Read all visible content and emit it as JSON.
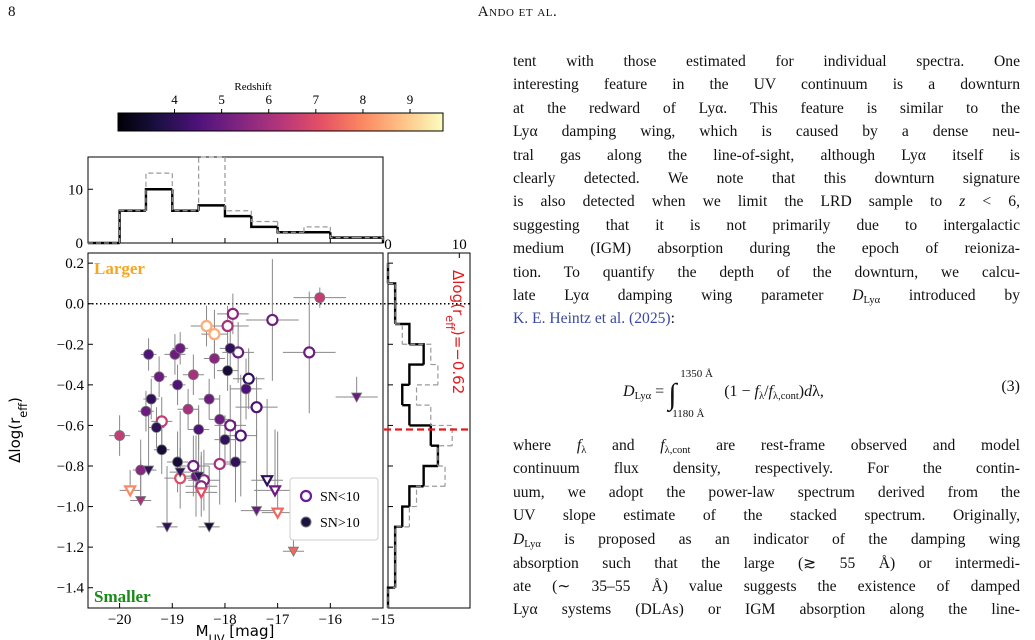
{
  "header": {
    "page": "8",
    "running_title": "Ando et al."
  },
  "figure": {
    "colorbar": {
      "label": "Redshift",
      "clim": [
        2.8,
        9.7
      ],
      "ticks": [
        4,
        5,
        6,
        7,
        8,
        9
      ],
      "colormap": "magma"
    },
    "top_hist": {
      "type": "histogram",
      "bins": [
        -20.6,
        -20,
        -19.5,
        -19,
        -18.5,
        -18,
        -17.5,
        -17,
        -16.5,
        -16,
        -15.5,
        -15
      ],
      "series": [
        {
          "color": "#000000",
          "style": "solid",
          "values": [
            0,
            6,
            10,
            6,
            7,
            5,
            3,
            2,
            2,
            1,
            1
          ]
        },
        {
          "color": "#9a9a9a",
          "style": "dashed",
          "values": [
            0,
            6,
            13,
            6,
            16,
            6,
            4,
            2,
            3,
            1,
            1
          ]
        }
      ],
      "ylim": [
        0,
        16
      ],
      "yticks": [
        0,
        10
      ]
    },
    "right_hist": {
      "type": "histogram",
      "bins": [
        0.2,
        0.1,
        0.0,
        -0.1,
        -0.2,
        -0.3,
        -0.4,
        -0.5,
        -0.6,
        -0.7,
        -0.8,
        -0.9,
        -1.0,
        -1.1,
        -1.2,
        -1.3,
        -1.4,
        -1.5
      ],
      "series": [
        {
          "color": "#000000",
          "style": "solid",
          "values": [
            0,
            1,
            1,
            3,
            5,
            3,
            2,
            3,
            6,
            7,
            5,
            3,
            2,
            1,
            1,
            1,
            0
          ]
        },
        {
          "color": "#9a9a9a",
          "style": "dashed",
          "values": [
            0,
            1,
            1,
            2,
            6,
            7,
            4,
            6,
            9,
            7,
            8,
            4,
            3,
            1,
            1,
            1,
            0
          ]
        }
      ],
      "xlim": [
        0,
        11.5
      ],
      "xticks": [
        0,
        10
      ],
      "median": -0.62,
      "median_color": "#e41a1c",
      "annotation": {
        "main": "Δlog(r",
        "sub": "eff",
        "rest": ")=−0.62"
      }
    },
    "scatter": {
      "type": "scatter",
      "xlabel": {
        "main": "M",
        "sub": "UV",
        "rest": " [mag]"
      },
      "ylabel": {
        "main": "Δlog(r",
        "sub": "eff",
        "rest": ")"
      },
      "xlim": [
        -20.6,
        -15
      ],
      "ylim": [
        -1.5,
        0.25
      ],
      "xticks": [
        {
          "value": -20,
          "label": "−20"
        },
        {
          "value": -19,
          "label": "−19"
        },
        {
          "value": -18,
          "label": "−18"
        },
        {
          "value": -17,
          "label": "−17"
        },
        {
          "value": -16,
          "label": "−16"
        },
        {
          "value": -15,
          "label": "−15"
        }
      ],
      "yticks": [
        0.2,
        {
          "value": 0,
          "label": "0.0"
        },
        {
          "value": -0.2,
          "label": "−0.2"
        },
        {
          "value": -0.4,
          "label": "−0.4"
        },
        {
          "value": -0.6,
          "label": "−0.6"
        },
        {
          "value": -0.8,
          "label": "−0.8"
        },
        {
          "value": -1.0,
          "label": "−1.0"
        },
        {
          "value": -1.2,
          "label": "−1.2"
        },
        {
          "value": -1.4,
          "label": "−1.4"
        }
      ],
      "reference_line": 0,
      "annotations": [
        {
          "text": "Larger",
          "color": "#f5a623"
        },
        {
          "text": "Smaller",
          "color": "#1a8a1a"
        }
      ],
      "legend": "lower right",
      "series": [
        {
          "name": "SN<10",
          "marker": "open",
          "color": "#6a1b9a",
          "x": [
            -19.2,
            -18.85,
            -18.35,
            -18.2,
            -18.1,
            -17.95,
            -17.85,
            -17.75,
            -17.7,
            -17.55,
            -17.4,
            -17.1,
            -16.4,
            -18.4,
            -18.45,
            -17.9,
            -18.6,
            -19.8,
            -17.05,
            -17.2,
            -18.45,
            -17.0
          ],
          "values": [
            -0.58,
            -0.86,
            -0.11,
            -0.15,
            -0.79,
            -0.11,
            -0.05,
            -0.24,
            -0.65,
            -0.37,
            -0.51,
            -0.08,
            -0.24,
            -0.87,
            -0.9,
            -0.6,
            -0.8,
            -0.92,
            -0.92,
            -0.87,
            -0.93,
            -1.03
          ],
          "z": [
            6.5,
            7,
            8.5,
            8.5,
            6,
            6,
            5.5,
            5,
            4.5,
            4,
            4.5,
            5,
            5,
            5.5,
            5.5,
            5,
            5,
            8,
            5,
            4,
            7,
            7.5
          ],
          "xerr": [
            0.2,
            0.3,
            0.3,
            0.25,
            0.3,
            0.4,
            0.3,
            0.3,
            0.3,
            0.3,
            0.4,
            0.5,
            0.5,
            0.3,
            0.3,
            0.3,
            0.3,
            0.2,
            0.4,
            0.3,
            0.3,
            0.3
          ],
          "yerr": [
            0.12,
            0.15,
            0.1,
            0.12,
            0.2,
            0.1,
            0.1,
            0.15,
            0.3,
            0.15,
            0.15,
            0.3,
            0.3,
            0.15,
            0.15,
            0.2,
            0.15,
            0.1,
            0.3,
            0.4,
            0.2,
            0.4
          ],
          "upper_limit": [
            false,
            false,
            false,
            false,
            false,
            false,
            false,
            false,
            false,
            false,
            false,
            false,
            false,
            false,
            false,
            false,
            false,
            true,
            true,
            true,
            true,
            true
          ]
        },
        {
          "name": "SN>10",
          "marker": "filled",
          "color": "#1a1440",
          "x": [
            -20.0,
            -19.5,
            -19.45,
            -19.4,
            -19.3,
            -19.25,
            -19.2,
            -18.95,
            -18.9,
            -18.85,
            -18.9,
            -18.7,
            -18.6,
            -18.5,
            -18.3,
            -18.2,
            -18.1,
            -18.0,
            -17.95,
            -17.9,
            -17.8,
            -17.6,
            -16.2,
            -19.6,
            -18.55,
            -19.45,
            -19.1,
            -18.85,
            -18.5,
            -18.3,
            -17.4,
            -15.5,
            -19.6,
            -16.7
          ],
          "values": [
            -0.65,
            -0.53,
            -0.25,
            -0.47,
            -0.61,
            -0.36,
            -0.72,
            -0.25,
            -0.4,
            -0.22,
            -0.78,
            -0.52,
            -0.35,
            -0.62,
            -0.47,
            -0.27,
            -0.57,
            -0.67,
            -0.33,
            -0.22,
            -0.78,
            -0.42,
            0.03,
            -0.82,
            -0.85,
            -0.82,
            -1.1,
            -0.83,
            -0.85,
            -1.1,
            -1.02,
            -0.46,
            -0.97,
            -1.22
          ],
          "z": [
            6.5,
            5,
            4.5,
            4,
            4,
            5,
            3.5,
            5,
            4.5,
            5,
            3.5,
            6,
            6,
            4.5,
            5,
            5.5,
            5,
            4,
            3.5,
            4,
            4,
            4.5,
            6.5,
            5.5,
            5,
            4,
            4,
            4,
            4,
            3.5,
            5,
            5,
            6,
            7.5
          ],
          "xerr": [
            0.2,
            0.15,
            0.15,
            0.15,
            0.15,
            0.15,
            0.15,
            0.2,
            0.15,
            0.15,
            0.2,
            0.2,
            0.2,
            0.2,
            0.2,
            0.2,
            0.2,
            0.2,
            0.2,
            0.2,
            0.2,
            0.3,
            0.5,
            0.15,
            0.2,
            0.15,
            0.2,
            0.2,
            0.2,
            0.2,
            0.3,
            0.4,
            0.2,
            0.2
          ],
          "yerr": [
            0.1,
            0.1,
            0.08,
            0.1,
            0.1,
            0.1,
            0.12,
            0.1,
            0.1,
            0.08,
            0.15,
            0.1,
            0.1,
            0.1,
            0.1,
            0.1,
            0.12,
            0.12,
            0.1,
            0.1,
            0.2,
            0.15,
            0.05,
            0.15,
            0.2,
            0.3,
            0.3,
            0.3,
            0.35,
            0.3,
            0.4,
            0.1,
            0.2,
            0.2
          ],
          "upper_limit": [
            false,
            false,
            false,
            false,
            false,
            false,
            false,
            false,
            false,
            false,
            false,
            false,
            false,
            false,
            false,
            false,
            false,
            false,
            false,
            false,
            false,
            false,
            false,
            false,
            false,
            true,
            true,
            true,
            true,
            true,
            true,
            true,
            true,
            true
          ]
        }
      ]
    }
  },
  "text": {
    "paragraph_1": [
      [
        "tent with those estimated for individual spectra. One"
      ],
      [
        "interesting feature in the UV continuum is a downturn"
      ],
      [
        "at the redward of Lyα. This feature is similar to the"
      ],
      [
        "Lyα damping wing, which is caused by a dense neu-"
      ],
      [
        "tral gas along the line-of-sight, although Lyα itself is"
      ],
      [
        "clearly detected. We note that this downturn signature"
      ],
      [
        "is also detected when we limit the LRD sample to ",
        {
          "i": "z"
        },
        " < 6,"
      ],
      [
        "suggesting that it is not primarily due to intergalactic"
      ],
      [
        "medium (IGM) absorption during the epoch of reioniza-"
      ],
      [
        "tion. To quantify the depth of the downturn, we calcu-"
      ],
      [
        "late Lyα damping wing parameter ",
        {
          "i": "D"
        },
        {
          "sub": "Lyα"
        },
        " introduced by"
      ],
      [
        {
          "link": "K. E. Heintz et al. (2025)"
        },
        ":"
      ]
    ],
    "equation": {
      "lhs": [
        {
          "i": "D"
        },
        {
          "sub": "Lyα"
        },
        " = "
      ],
      "upper": "1350 Å",
      "lower": "1180 Å",
      "integrand": [
        "(1 − ",
        {
          "i": "f"
        },
        {
          "sub": "λ"
        },
        "/",
        {
          "i": "f"
        },
        {
          "sub": "λ,cont"
        },
        ")",
        {
          "i": "d"
        },
        "λ,"
      ],
      "number": "(3)"
    },
    "paragraph_2": [
      [
        "where ",
        {
          "i": "f"
        },
        {
          "sub": "λ"
        },
        " and ",
        {
          "i": "f"
        },
        {
          "sub": "λ,cont"
        },
        " are rest-frame observed and model"
      ],
      [
        "continuum flux density, respectively. For the contin-"
      ],
      [
        "uum, we adopt the power-law spectrum derived from the"
      ],
      [
        "UV slope estimate of the stacked spectrum. Originally,"
      ],
      [
        {
          "i": "D"
        },
        {
          "sub": "Lyα"
        },
        " is proposed as an indicator of the damping wing"
      ],
      [
        "absorption such that the large (≳ 55 Å) or intermedi-"
      ],
      [
        "ate (∼ 35–55 Å) value suggests the existence of damped"
      ],
      [
        "Lyα systems (DLAs) or IGM absorption along the line-"
      ]
    ]
  }
}
